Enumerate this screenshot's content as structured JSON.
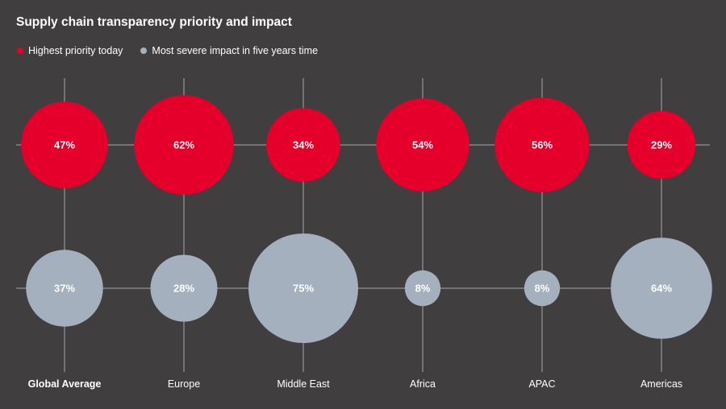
{
  "chart_data": {
    "type": "bubble",
    "title": "Supply chain transparency priority and impact",
    "categories": [
      "Global Average",
      "Europe",
      "Middle East",
      "Africa",
      "APAC",
      "Americas"
    ],
    "series": [
      {
        "name": "Highest priority today",
        "values": [
          47,
          62,
          34,
          54,
          56,
          29
        ],
        "labels": [
          "47%",
          "62%",
          "34%",
          "54%",
          "56%",
          "29%"
        ],
        "color": "#e4002b"
      },
      {
        "name": "Most severe impact in five years time",
        "values": [
          37,
          28,
          75,
          8,
          8,
          64
        ],
        "labels": [
          "37%",
          "28%",
          "75%",
          "8%",
          "8%",
          "64%"
        ],
        "color": "#a4b0bd"
      }
    ],
    "legend_position": "top-left",
    "grid": true
  },
  "colors": {
    "background": "#403e3e",
    "gridline": "#a8a8a8",
    "text": "#ffffff"
  }
}
